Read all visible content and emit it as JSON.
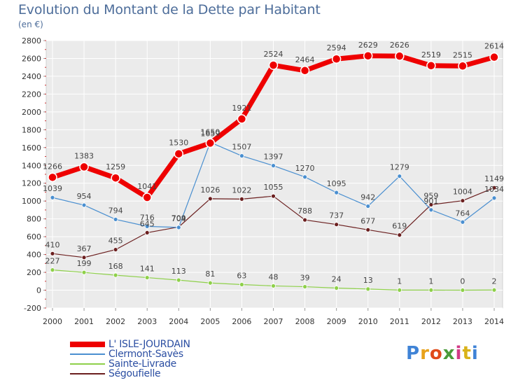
{
  "header": {
    "title": "Evolution du Montant de la Dette par Habitant",
    "subtitle": "(en €)"
  },
  "chart_data": {
    "type": "line",
    "x": [
      "2000",
      "2001",
      "2002",
      "2003",
      "2004",
      "2005",
      "2006",
      "2007",
      "2008",
      "2009",
      "2010",
      "2011",
      "2012",
      "2013",
      "2014"
    ],
    "ylim": [
      -200,
      2800
    ],
    "yticks": [
      -200,
      0,
      200,
      400,
      600,
      800,
      1000,
      1200,
      1400,
      1600,
      1800,
      2000,
      2200,
      2400,
      2600,
      2800
    ],
    "grid": true,
    "legend_position": "bottom-left",
    "series": [
      {
        "name": "L' ISLE-JOURDAIN",
        "color": "#ee0000",
        "values": [
          1266,
          1383,
          1259,
          1041,
          1530,
          1650,
          1921,
          2524,
          2464,
          2594,
          2629,
          2626,
          2519,
          2515,
          2614
        ]
      },
      {
        "name": "Clermont-Savès",
        "color": "#4a8fd0",
        "values": [
          1039,
          954,
          794,
          716,
          704,
          1659,
          1507,
          1397,
          1270,
          1095,
          942,
          1279,
          901,
          764,
          1034
        ]
      },
      {
        "name": "Sainte-Livrade",
        "color": "#8ed04a",
        "values": [
          227,
          199,
          168,
          141,
          113,
          81,
          63,
          48,
          39,
          24,
          13,
          1,
          1,
          0,
          2
        ]
      },
      {
        "name": "Ségoufielle",
        "color": "#6b1f1f",
        "values": [
          410,
          367,
          455,
          645,
          709,
          1026,
          1022,
          1055,
          788,
          737,
          677,
          619,
          959,
          1004,
          1149
        ]
      }
    ]
  },
  "logo": {
    "letters": [
      "P",
      "r",
      "o",
      "x",
      "i",
      "t",
      "i"
    ],
    "colors": [
      "#3f83d6",
      "#e8a21a",
      "#e04a1a",
      "#4a9b3a",
      "#d23a85",
      "#d9b21a",
      "#3f83d6"
    ]
  }
}
